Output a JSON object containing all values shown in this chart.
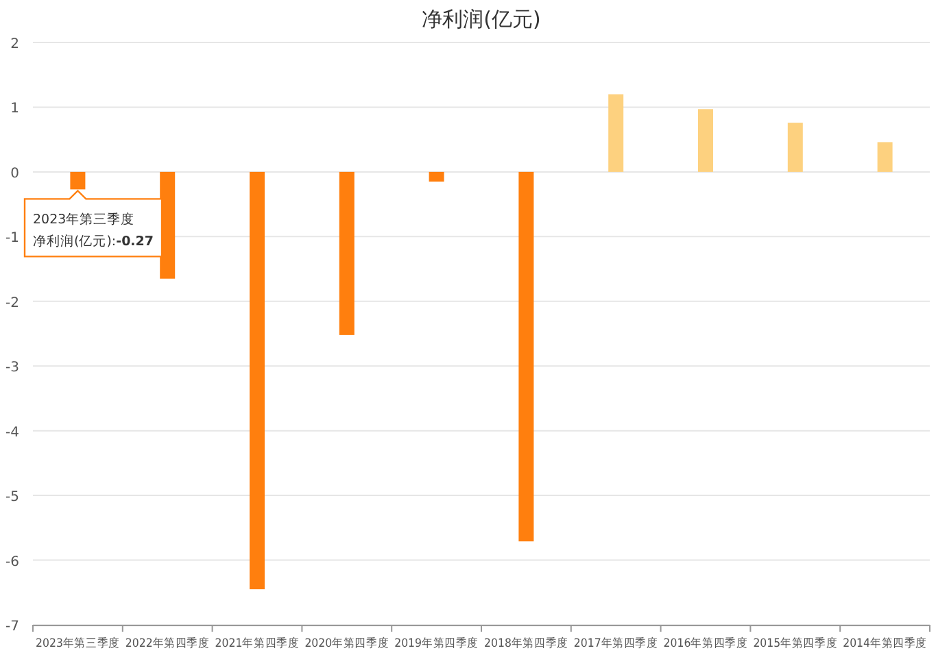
{
  "chart_data": {
    "type": "bar",
    "title": "净利润(亿元)",
    "categories": [
      "2023年第三季度",
      "2022年第四季度",
      "2021年第四季度",
      "2020年第四季度",
      "2019年第四季度",
      "2018年第四季度",
      "2017年第四季度",
      "2016年第四季度",
      "2015年第四季度",
      "2014年第四季度"
    ],
    "values": [
      -0.27,
      -1.65,
      -6.45,
      -2.52,
      -0.15,
      -5.71,
      1.2,
      0.97,
      0.76,
      0.46
    ],
    "colors": [
      "#ff7f0e",
      "#ff7f0e",
      "#ff7f0e",
      "#ff7f0e",
      "#ff7f0e",
      "#ff7f0e",
      "#fdd17f",
      "#fdd17f",
      "#fdd17f",
      "#fdd17f"
    ],
    "ylim": [
      -7,
      2
    ],
    "yticks": [
      -7,
      -6,
      -5,
      -4,
      -3,
      -2,
      -1,
      0,
      1,
      2
    ],
    "grid": "y",
    "annotations": [
      {
        "text": "2023年第三季度",
        "x": "2023年第三季度",
        "y": -0.27
      },
      "净利润(亿元):**-0.27**"
    ]
  }
}
